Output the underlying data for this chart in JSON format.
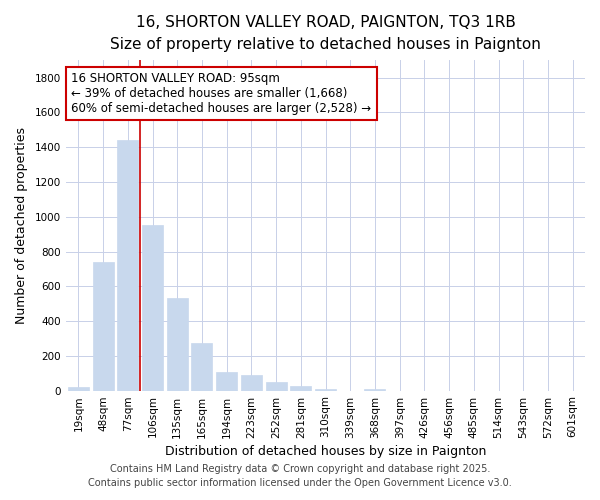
{
  "title": "16, SHORTON VALLEY ROAD, PAIGNTON, TQ3 1RB",
  "subtitle": "Size of property relative to detached houses in Paignton",
  "xlabel": "Distribution of detached houses by size in Paignton",
  "ylabel": "Number of detached properties",
  "categories": [
    "19sqm",
    "48sqm",
    "77sqm",
    "106sqm",
    "135sqm",
    "165sqm",
    "194sqm",
    "223sqm",
    "252sqm",
    "281sqm",
    "310sqm",
    "339sqm",
    "368sqm",
    "397sqm",
    "426sqm",
    "456sqm",
    "485sqm",
    "514sqm",
    "543sqm",
    "572sqm",
    "601sqm"
  ],
  "values": [
    20,
    740,
    1440,
    950,
    535,
    275,
    105,
    90,
    50,
    25,
    10,
    0,
    10,
    0,
    0,
    0,
    0,
    0,
    0,
    0,
    0
  ],
  "bar_color": "#c8d8ed",
  "bar_edge_color": "#c8d8ed",
  "vline_color": "#cc0000",
  "annotation_text": "16 SHORTON VALLEY ROAD: 95sqm\n← 39% of detached houses are smaller (1,668)\n60% of semi-detached houses are larger (2,528) →",
  "annotation_box_color": "white",
  "annotation_box_edge_color": "#cc0000",
  "ylim": [
    0,
    1900
  ],
  "yticks": [
    0,
    200,
    400,
    600,
    800,
    1000,
    1200,
    1400,
    1600,
    1800
  ],
  "footer1": "Contains HM Land Registry data © Crown copyright and database right 2025.",
  "footer2": "Contains public sector information licensed under the Open Government Licence v3.0.",
  "background_color": "#ffffff",
  "grid_color": "#c8d0e8",
  "title_fontsize": 11,
  "subtitle_fontsize": 10,
  "axis_label_fontsize": 9,
  "tick_fontsize": 7.5,
  "annotation_fontsize": 8.5,
  "footer_fontsize": 7
}
